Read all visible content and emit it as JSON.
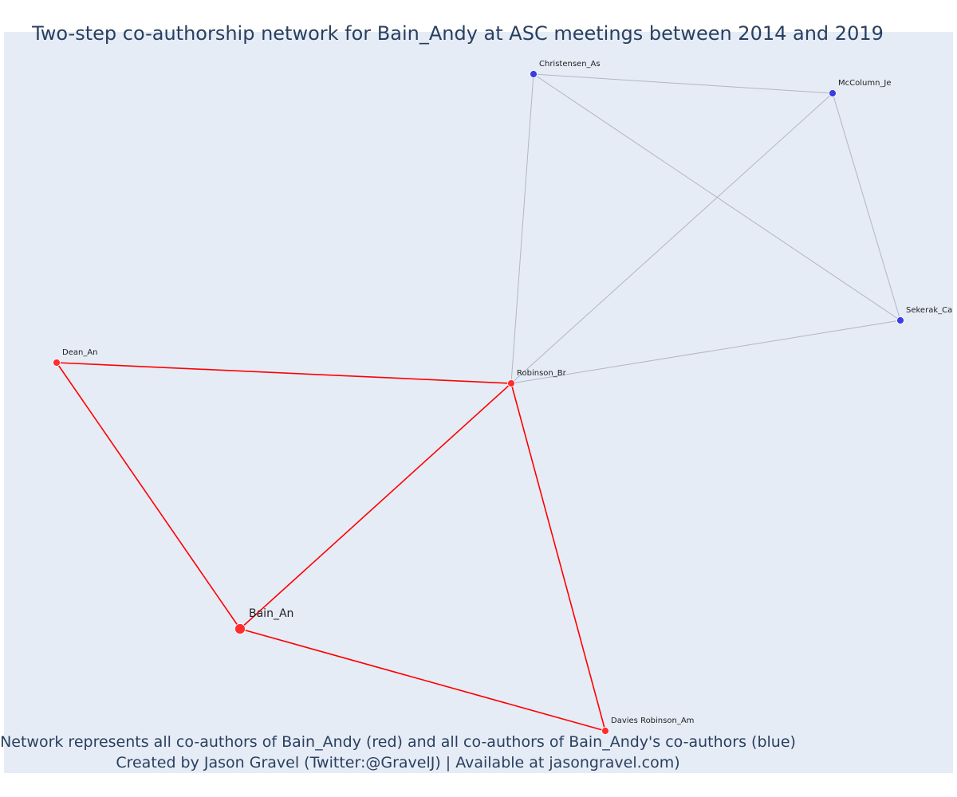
{
  "title": "Two-step co-authorship network for Bain_Andy at ASC meetings between 2014 and 2019",
  "footer": {
    "line1": "Network represents all co-authors of Bain_Andy (red) and all co-authors of Bain_Andy's co-authors (blue)",
    "line2": "Created by Jason Gravel (Twitter:@GravelJ) | Available at jasongravel.com)"
  },
  "colors": {
    "background": "#e5ecf6",
    "ego_edge": "#ff0000",
    "ego_node": "#ff2d2d",
    "alter_edge": "#b4b4c8",
    "alter_node": "#3c3ce6",
    "text": "#2a3f5f"
  },
  "nodes": [
    {
      "id": "Bain_An",
      "label": "Bain_An",
      "group": "ego"
    },
    {
      "id": "Dean_An",
      "label": "Dean_An",
      "group": "coauthor"
    },
    {
      "id": "Robinson_Br",
      "label": "Robinson_Br",
      "group": "coauthor"
    },
    {
      "id": "Davies Robinson_Am",
      "label": "Davies Robinson_Am",
      "group": "coauthor"
    },
    {
      "id": "Christensen_As",
      "label": "Christensen_As",
      "group": "second-step"
    },
    {
      "id": "McColumn_Je",
      "label": "McColumn_Je",
      "group": "second-step"
    },
    {
      "id": "Sekerak_Ca",
      "label": "Sekerak_Ca",
      "group": "second-step"
    }
  ],
  "edges": [
    {
      "source": "Dean_An",
      "target": "Robinson_Br",
      "group": "coauthor"
    },
    {
      "source": "Dean_An",
      "target": "Bain_An",
      "group": "coauthor"
    },
    {
      "source": "Bain_An",
      "target": "Robinson_Br",
      "group": "coauthor"
    },
    {
      "source": "Bain_An",
      "target": "Davies Robinson_Am",
      "group": "coauthor"
    },
    {
      "source": "Robinson_Br",
      "target": "Davies Robinson_Am",
      "group": "coauthor"
    },
    {
      "source": "Christensen_As",
      "target": "McColumn_Je",
      "group": "second-step"
    },
    {
      "source": "Christensen_As",
      "target": "Robinson_Br",
      "group": "second-step"
    },
    {
      "source": "Christensen_As",
      "target": "Sekerak_Ca",
      "group": "second-step"
    },
    {
      "source": "McColumn_Je",
      "target": "Robinson_Br",
      "group": "second-step"
    },
    {
      "source": "McColumn_Je",
      "target": "Sekerak_Ca",
      "group": "second-step"
    },
    {
      "source": "Sekerak_Ca",
      "target": "Robinson_Br",
      "group": "second-step"
    }
  ]
}
